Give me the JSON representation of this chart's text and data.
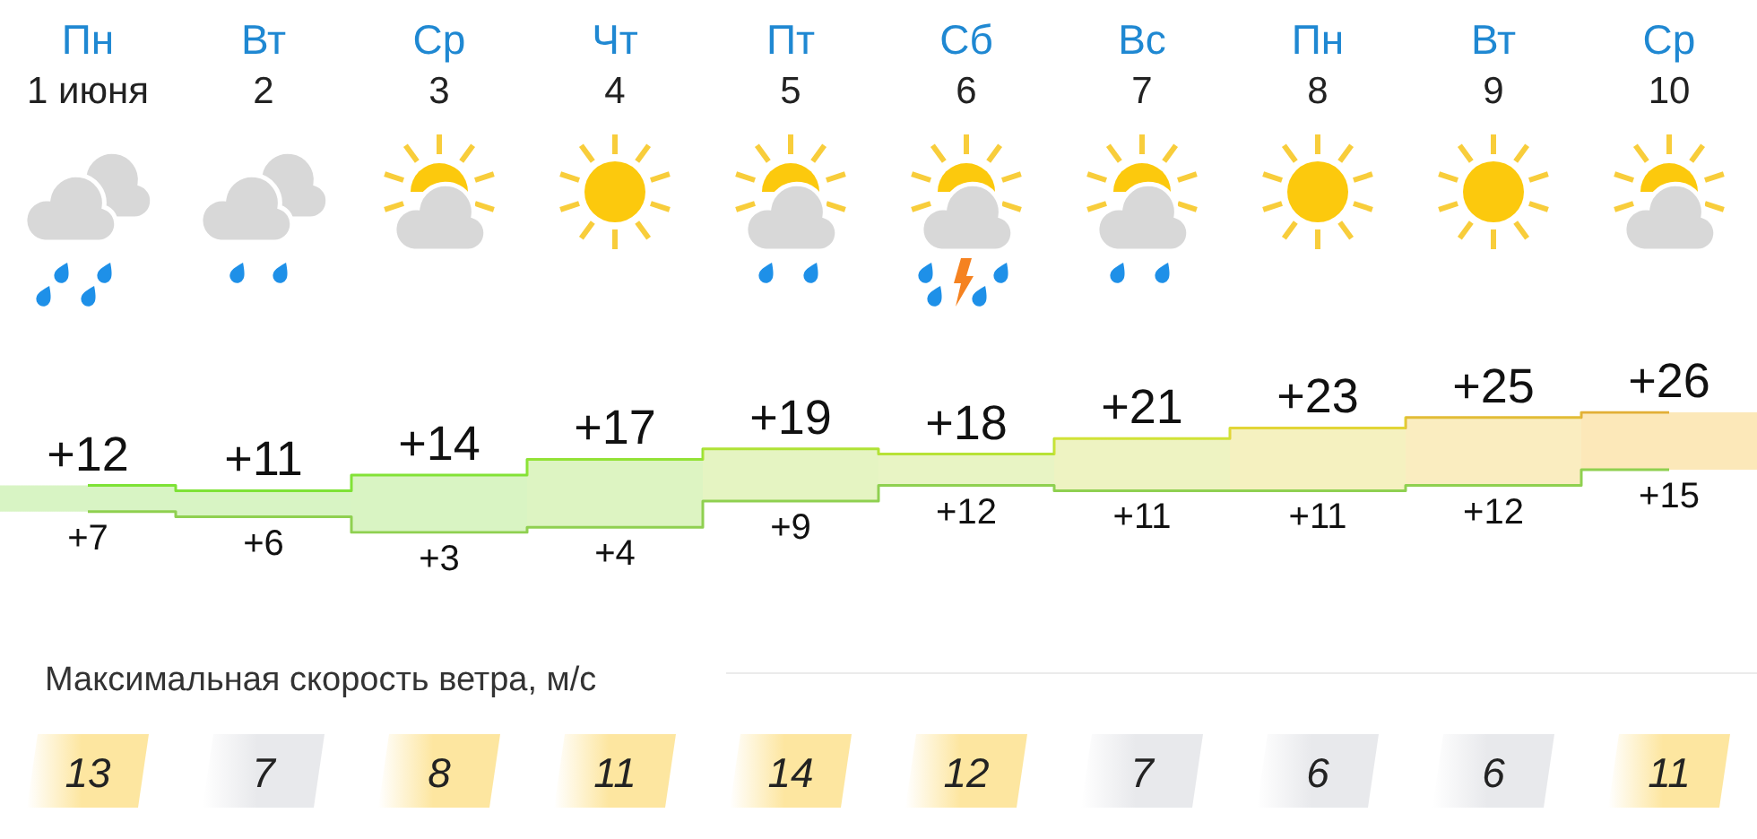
{
  "chart_data": [
    {
      "type": "step",
      "categories": [
        "Пн\n1 июня",
        "Вт\n2",
        "Ср\n3",
        "Чт\n4",
        "Пт\n5",
        "Сб\n6",
        "Вс\n7",
        "Пн\n8",
        "Вт\n9",
        "Ср\n10"
      ],
      "series": [
        {
          "values": [
            12,
            11,
            14,
            17,
            19,
            18,
            21,
            23,
            25,
            26
          ],
          "colors": [
            "#d8f4c4",
            "#d8f4c4",
            "#d9f4c3",
            "#ddf4c2",
            "#e5f4c2",
            "#e8f4c4",
            "#eef3c2",
            "#f5f1c0",
            "#faedc0",
            "#fce8b9"
          ],
          "value_labels": [
            "+12",
            "+11",
            "+14",
            "+17",
            "+19",
            "+18",
            "+21",
            "+23",
            "+25",
            "+26"
          ]
        },
        {
          "values": [
            7,
            6,
            3,
            4,
            9,
            12,
            11,
            11,
            12,
            15
          ],
          "color": "#8fd050",
          "value_labels": [
            "+7",
            "+6",
            "+3",
            "+4",
            "+9",
            "+12",
            "+11",
            "+11",
            "+12",
            "+15"
          ]
        }
      ],
      "marker": "none",
      "tick_labels": "x"
    },
    {
      "type": "other",
      "title": "Максимальная скорость ветра, м/с",
      "values": [
        13,
        7,
        8,
        11,
        14,
        12,
        7,
        6,
        6,
        11
      ],
      "colors": [
        "#fde6a0",
        "#e8e9ec",
        "#fde6a0",
        "#fde6a0",
        "#fde6a0",
        "#fde6a0",
        "#e8e9ec",
        "#e8e9ec",
        "#e8e9ec",
        "#fde6a0"
      ],
      "data_labels": true
    }
  ]
}
